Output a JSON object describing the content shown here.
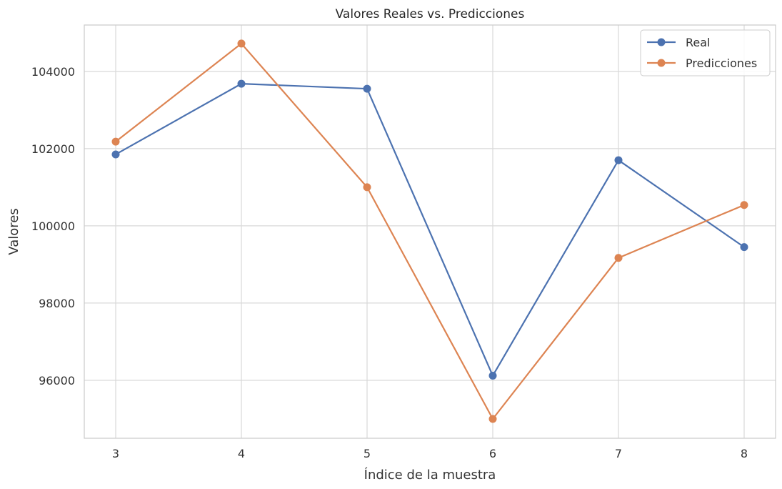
{
  "chart_data": {
    "type": "line",
    "title": "Valores Reales vs. Predicciones",
    "xlabel": "Índice de la muestra",
    "ylabel": "Valores",
    "x": [
      3,
      4,
      5,
      6,
      7,
      8
    ],
    "xlim": [
      2.75,
      8.25
    ],
    "ylim": [
      94500,
      105200
    ],
    "yticks": [
      96000,
      98000,
      100000,
      102000,
      104000
    ],
    "grid": true,
    "legend_position": "top-right",
    "series": [
      {
        "name": "Real",
        "color": "#4c72b0",
        "marker": "circle",
        "values": [
          101850,
          103680,
          103550,
          96120,
          101700,
          99450
        ]
      },
      {
        "name": "Predicciones",
        "color": "#dd8452",
        "marker": "circle",
        "values": [
          102180,
          104720,
          101000,
          95000,
          99170,
          100540
        ]
      }
    ]
  }
}
